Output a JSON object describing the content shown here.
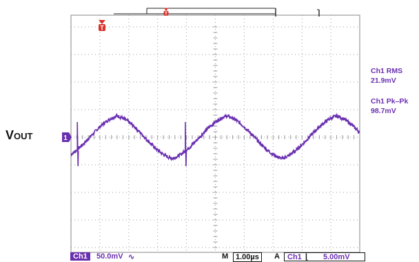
{
  "signal_label": {
    "main": "V",
    "sub": "OUT"
  },
  "measurements": [
    {
      "label": "Ch1 RMS",
      "value": "21.9mV"
    },
    {
      "label": "Ch1 Pk–Pk",
      "value": "98.7mV"
    }
  ],
  "status_bar": {
    "channel": "Ch1",
    "volts_per_div": "50.0mV",
    "coupling_icon": "ac-coupling-icon",
    "mode": "M",
    "time_per_div": "1.00µs",
    "trigger_mode": "A",
    "trigger_channel": "Ch1",
    "trigger_slope_icon": "falling-edge-icon",
    "trigger_level": "5.00mV"
  },
  "markers": {
    "channel_marker": "1",
    "trigger_marker": "T"
  },
  "colors": {
    "trace": "#6a2fb0",
    "grid": "#9a9a9a",
    "trigger_marker": "#d9312b",
    "text": "#111111"
  },
  "chart_data": {
    "type": "line",
    "title": "",
    "xlabel": "",
    "ylabel": "",
    "grid": true,
    "x_divisions": 10,
    "y_divisions": 8,
    "x_per_div_us": 1.0,
    "y_per_div_mV": 50.0,
    "xlim": [
      0,
      10
    ],
    "ylim": [
      -4,
      4
    ],
    "series": [
      {
        "name": "Ch1",
        "waveform": "triangle-like ripple with switching spikes",
        "period_div": 3.8,
        "peak_to_peak_mV": 98.7,
        "rms_mV": 21.9,
        "offset_div": 0.0,
        "first_peak_div": 5.4,
        "spike_times_div": [
          0.22,
          3.96
        ]
      }
    ]
  }
}
